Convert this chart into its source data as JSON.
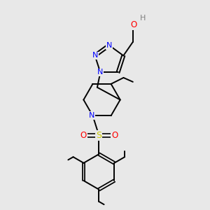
{
  "background_color": "#e8e8e8",
  "atom_colors": {
    "N": "#0000ff",
    "O": "#ff0000",
    "S": "#cccc00",
    "C": "#000000",
    "H": "#808080"
  },
  "bond_color": "#000000",
  "figsize": [
    3.0,
    3.0
  ],
  "dpi": 100,
  "xlim": [
    0,
    10
  ],
  "ylim": [
    0,
    10
  ]
}
